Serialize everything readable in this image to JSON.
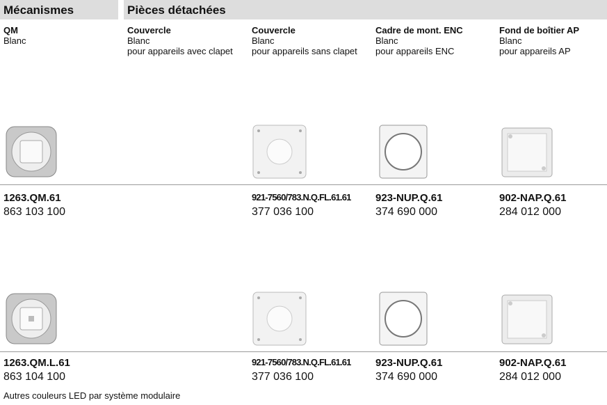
{
  "header": {
    "sections": [
      "Mécanismes",
      "Pièces détachées"
    ]
  },
  "columns": [
    {
      "title": "QM",
      "lines": [
        "Blanc"
      ]
    },
    {
      "title": "Couvercle",
      "lines": [
        "Blanc",
        "pour appareils avec clapet"
      ]
    },
    {
      "title": "Couvercle",
      "lines": [
        "Blanc",
        "pour appareils sans clapet"
      ]
    },
    {
      "title": "Cadre de mont. ENC",
      "lines": [
        "Blanc",
        "pour appareils ENC"
      ]
    },
    {
      "title": "Fond de boîtier AP",
      "lines": [
        "Blanc",
        "pour appareils AP"
      ]
    }
  ],
  "rows": [
    {
      "cells": [
        {
          "code": "1263.QM.61",
          "number": "863 103 100"
        },
        null,
        {
          "code": "921-7560/783.N.Q.FL.61.61",
          "number": "377 036 100"
        },
        {
          "code": "923-NUP.Q.61",
          "number": "374 690 000"
        },
        {
          "code": "902-NAP.Q.61",
          "number": "284 012 000"
        }
      ]
    },
    {
      "cells": [
        {
          "code": "1263.QM.L.61",
          "number": "863 104 100"
        },
        null,
        {
          "code": "921-7560/783.N.Q.FL.61.61",
          "number": "377 036 100"
        },
        {
          "code": "923-NUP.Q.61",
          "number": "374 690 000"
        },
        {
          "code": "902-NAP.Q.61",
          "number": "284 012 000"
        }
      ]
    }
  ],
  "footnote": "Autres couleurs LED par système modulaire"
}
